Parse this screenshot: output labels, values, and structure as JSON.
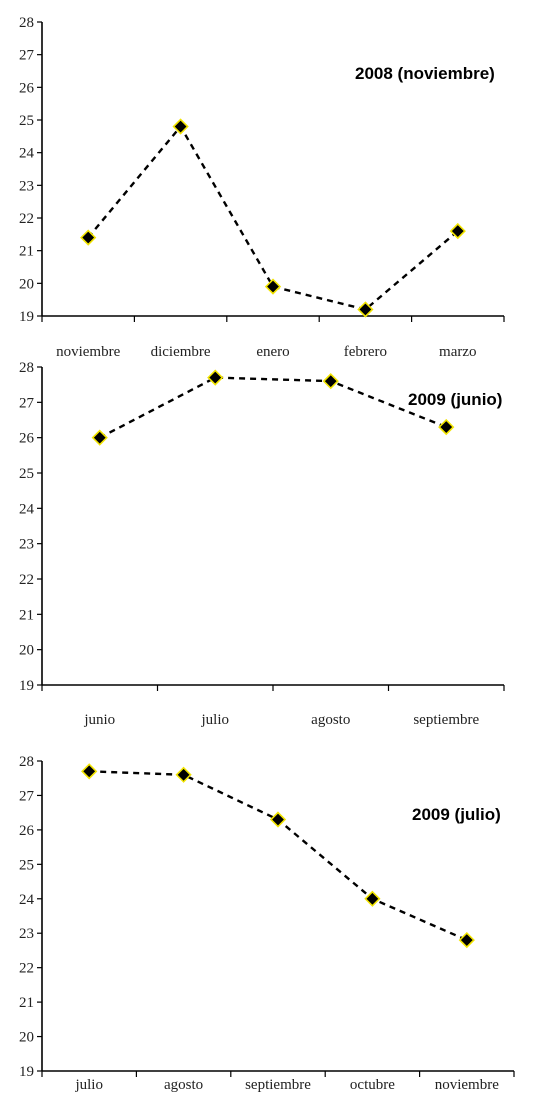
{
  "chart_data": [
    {
      "type": "line",
      "title": "2008 (noviembre)",
      "categories": [
        "noviembre",
        "diciembre",
        "enero",
        "febrero",
        "marzo"
      ],
      "series": [
        {
          "values": [
            21.4,
            24.8,
            19.9,
            19.2,
            21.6
          ]
        }
      ],
      "ylim": [
        19,
        28
      ],
      "yticks": [
        19,
        20,
        21,
        22,
        23,
        24,
        25,
        26,
        27,
        28
      ],
      "grid": false,
      "legend": "none",
      "line_style": "dashed",
      "marker": "diamond",
      "colors": {
        "line": "#000000",
        "marker_fill": "#000000",
        "marker_edge": "#f2e400"
      }
    },
    {
      "type": "line",
      "title": "2009 (junio)",
      "categories": [
        "junio",
        "julio",
        "agosto",
        "septiembre"
      ],
      "series": [
        {
          "values": [
            26.0,
            27.7,
            27.6,
            26.3
          ]
        }
      ],
      "ylim": [
        19,
        28
      ],
      "yticks": [
        19,
        20,
        21,
        22,
        23,
        24,
        25,
        26,
        27,
        28
      ],
      "grid": false,
      "legend": "none",
      "line_style": "dashed",
      "marker": "diamond",
      "colors": {
        "line": "#000000",
        "marker_fill": "#000000",
        "marker_edge": "#f2e400"
      }
    },
    {
      "type": "line",
      "title": "2009 (julio)",
      "categories": [
        "julio",
        "agosto",
        "septiembre",
        "octubre",
        "noviembre"
      ],
      "series": [
        {
          "values": [
            27.7,
            27.6,
            26.3,
            24.0,
            22.8
          ]
        }
      ],
      "ylim": [
        19,
        28
      ],
      "yticks": [
        19,
        20,
        21,
        22,
        23,
        24,
        25,
        26,
        27,
        28
      ],
      "grid": false,
      "legend": "none",
      "line_style": "dashed",
      "marker": "diamond",
      "colors": {
        "line": "#000000",
        "marker_fill": "#000000",
        "marker_edge": "#f2e400"
      }
    }
  ]
}
